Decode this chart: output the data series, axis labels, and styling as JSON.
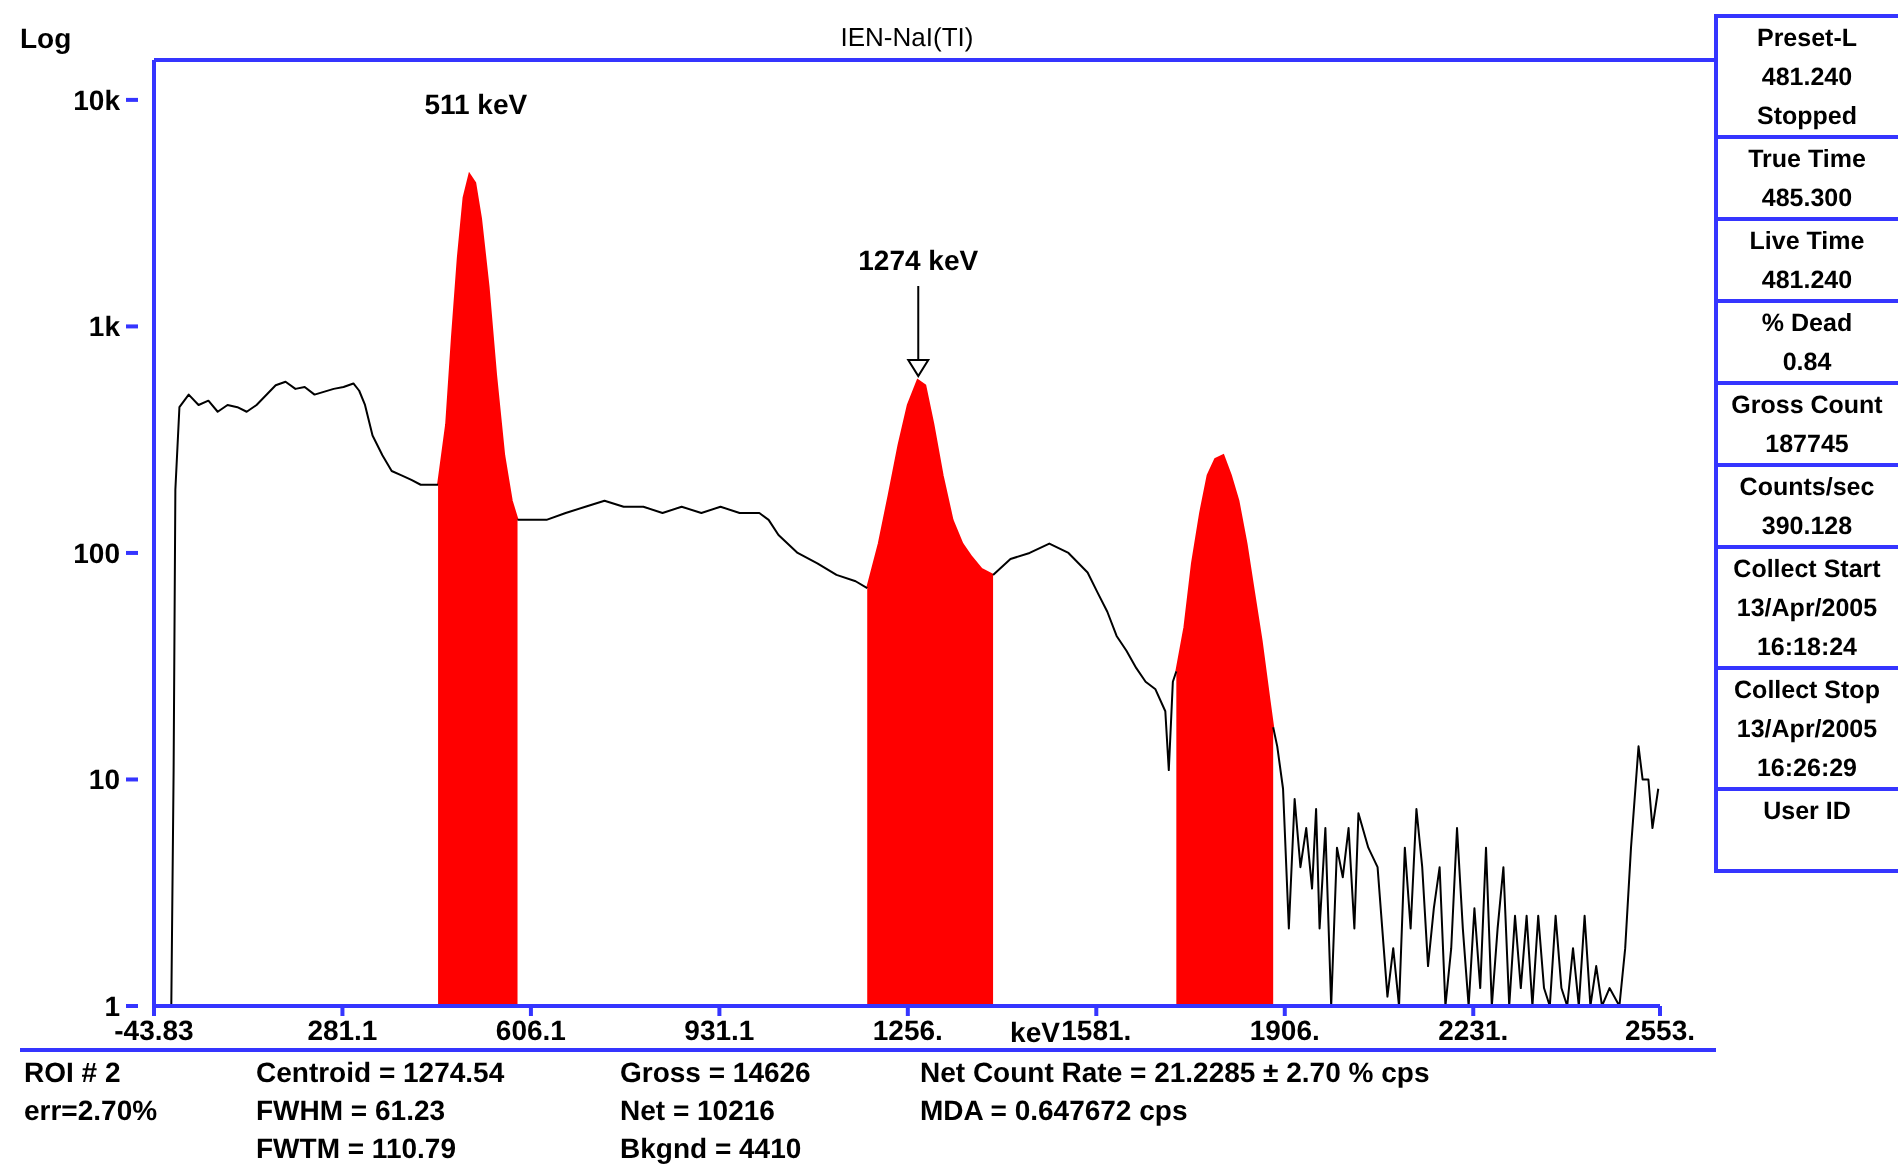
{
  "chart_data": {
    "type": "line",
    "title": "IEN-NaI(TI)",
    "xlabel": "keV",
    "ylabel": "Log",
    "log": "y",
    "xlim": [
      -43.83,
      2553
    ],
    "xticks": [
      -43.83,
      281.1,
      606.1,
      931.1,
      {
        "value": 1256,
        "label": "1256."
      },
      {
        "value": 1581,
        "label": "1581."
      },
      {
        "value": 1906,
        "label": "1906."
      },
      {
        "value": 2231,
        "label": "2231."
      },
      {
        "value": 2553,
        "label": "2553."
      }
    ],
    "ylim": [
      1,
      15000
    ],
    "yticks": [
      1,
      10,
      100,
      {
        "value": 1000,
        "label": "1k"
      },
      {
        "value": 10000,
        "label": "10k"
      }
    ],
    "series": [
      {
        "color": "#000000",
        "x": [
          -14,
          -10,
          -7,
          0,
          16,
          33,
          50,
          66,
          83,
          100,
          116,
          133,
          166,
          183,
          200,
          216,
          233,
          266,
          283,
          300,
          310,
          320,
          333,
          350,
          366,
          383,
          400,
          416,
          433,
          446,
          510,
          583,
          600,
          633,
          666,
          700,
          733,
          766,
          800,
          833,
          866,
          900,
          933,
          966,
          1000,
          1016,
          1033,
          1066,
          1100,
          1133,
          1166,
          1186,
          1300,
          1403,
          1433,
          1466,
          1500,
          1533,
          1566,
          1583,
          1600,
          1616,
          1633,
          1650,
          1666,
          1683,
          1700,
          1706,
          1713,
          1719,
          1800,
          1886,
          1893,
          1903,
          1913,
          1923,
          1933,
          1943,
          1953,
          1960,
          1966,
          1976,
          1986,
          1996,
          2006,
          2016,
          2026,
          2033,
          2050,
          2066,
          2083,
          2093,
          2103,
          2113,
          2123,
          2133,
          2143,
          2153,
          2163,
          2173,
          2183,
          2193,
          2203,
          2213,
          2223,
          2233,
          2243,
          2253,
          2263,
          2273,
          2283,
          2293,
          2303,
          2313,
          2323,
          2333,
          2343,
          2353,
          2363,
          2373,
          2383,
          2393,
          2403,
          2413,
          2423,
          2433,
          2443,
          2453,
          2466,
          2483,
          2493,
          2503,
          2516,
          2523,
          2533,
          2540,
          2550
        ],
        "values": [
          1,
          11,
          190,
          440,
          500,
          450,
          470,
          420,
          450,
          440,
          420,
          450,
          550,
          570,
          530,
          540,
          500,
          530,
          540,
          560,
          520,
          450,
          330,
          270,
          230,
          220,
          210,
          200,
          200,
          200,
          null,
          140,
          140,
          140,
          150,
          160,
          170,
          160,
          160,
          150,
          160,
          150,
          160,
          150,
          150,
          140,
          120,
          100,
          90,
          80,
          75,
          70,
          null,
          80,
          94,
          100,
          110,
          100,
          82,
          67,
          55,
          43,
          37,
          31,
          27,
          25,
          20,
          11,
          27,
          30,
          null,
          17,
          14,
          9.1,
          2.2,
          8.2,
          4.1,
          6.1,
          3.3,
          7.4,
          2.2,
          6.1,
          1,
          5,
          3.7,
          6.1,
          2.2,
          7.1,
          5,
          4.1,
          1.1,
          1.8,
          1,
          5,
          2.2,
          7.4,
          4.1,
          1.5,
          2.7,
          4.1,
          1,
          1.8,
          6.1,
          2.2,
          1,
          2.7,
          1.2,
          5,
          1,
          2.2,
          4.1,
          1,
          2.5,
          1.2,
          2.5,
          1,
          2.5,
          1.2,
          1,
          2.5,
          1.2,
          1,
          1.8,
          1,
          2.5,
          1,
          1.5,
          1,
          1.2,
          1,
          1.8,
          5,
          14,
          10,
          10,
          6.1,
          9.1
        ]
      },
      {
        "type": "area",
        "color": "#ff0000",
        "x": [
          446,
          460,
          470,
          480,
          490,
          500,
          510,
          520,
          533,
          546,
          560,
          573,
          583
        ],
        "values": [
          200,
          370,
          900,
          2000,
          3700,
          4700,
          4300,
          3000,
          1500,
          610,
          270,
          170,
          140
        ]
      },
      {
        "type": "area",
        "color": "#ff0000",
        "x": [
          1186,
          1206,
          1223,
          1240,
          1256,
          1273,
          1286,
          1300,
          1316,
          1333,
          1350,
          1366,
          1383,
          1403
        ],
        "values": [
          70,
          110,
          180,
          300,
          450,
          580,
          550,
          370,
          220,
          140,
          110,
          96,
          85,
          80
        ]
      },
      {
        "type": "area",
        "color": "#ff0000",
        "x": [
          1719,
          1733,
          1746,
          1760,
          1773,
          1786,
          1800,
          1813,
          1826,
          1840,
          1853,
          1866,
          1880,
          1886
        ],
        "values": [
          30,
          47,
          90,
          150,
          220,
          260,
          270,
          220,
          170,
          110,
          67,
          41,
          22,
          17
        ]
      }
    ],
    "annotations": [
      {
        "text": "511 keV",
        "x": 511,
        "y": 4700
      },
      {
        "text": "1274 keV",
        "x": 1274,
        "y": 580
      },
      "Preset-L\n481.240\nStopped",
      "True Time\n485.300",
      "Live Time\n481.240",
      "% Dead\n0.84",
      "Gross Count\n187745",
      "Counts/sec\n390.128",
      "Collect Start\n13/Apr/2005\n16:18:24",
      "Collect Stop\n13/Apr/2005\n16:26:29",
      "User ID",
      "ROI # 2\n\nerr=2.70%",
      "Centroid = 1274.54\nFWHM = 61.23\nFWTM = 110.79",
      "Gross = 14626\nNet = 10216\nBkgnd = 4410",
      "Net Count Rate = 21.2285 ± 2.70 % cps\nMDA = 0.647672 cps"
    ]
  }
}
